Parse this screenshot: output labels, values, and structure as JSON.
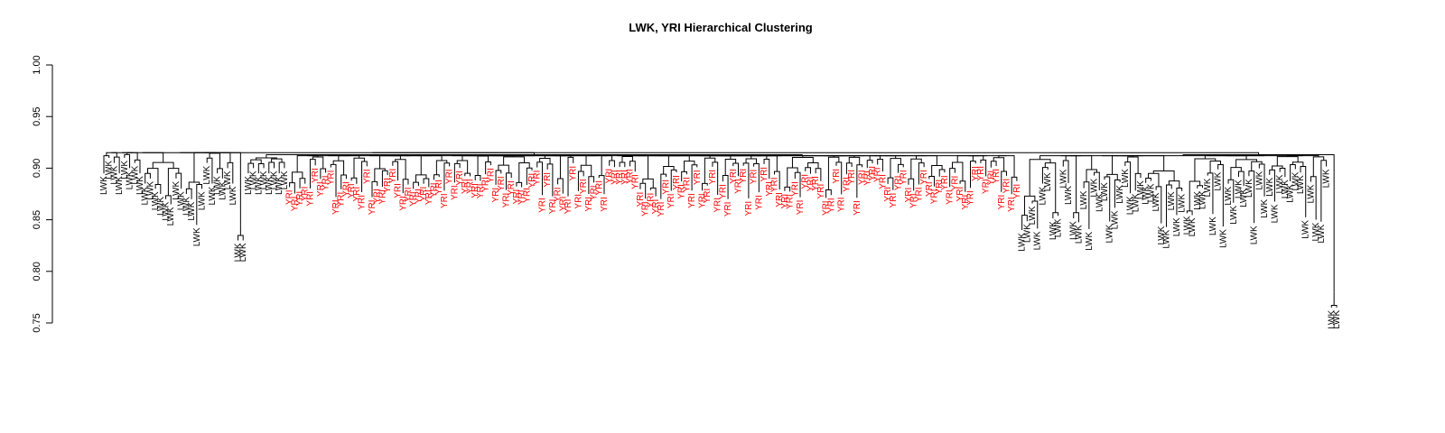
{
  "chart_data": {
    "type": "dendrogram",
    "title": "LWK, YRI Hierarchical Clustering",
    "xlabel": "",
    "ylabel": "",
    "ylim": [
      0.75,
      1.0
    ],
    "y_ticks": [
      "0.75",
      "0.80",
      "0.85",
      "0.90",
      "0.95",
      "1.00"
    ],
    "grid": false,
    "legend": "none",
    "series": [
      {
        "name": "LWK",
        "color": "#000000"
      },
      {
        "name": "YRI",
        "color": "#ff0000"
      }
    ],
    "leaf_labels": {
      "black": "LWK",
      "red": "YRI"
    },
    "root_height": 0.915,
    "groups": [
      {
        "label": "LWK",
        "color": "#000000",
        "leaves": 26,
        "merge_height": 0.915,
        "leaf_heights": [
          0.895,
          0.91,
          0.905,
          0.895,
          0.91,
          0.9,
          0.905,
          0.895,
          0.885,
          0.89,
          0.88,
          0.875,
          0.87,
          0.865,
          0.89,
          0.88,
          0.875,
          0.87,
          0.845,
          0.88,
          0.905,
          0.885,
          0.895,
          0.89,
          0.9,
          0.885
        ]
      },
      {
        "label": "LWK",
        "color": "#000000",
        "leaves": 2,
        "merge_height": 0.845,
        "leaf_heights": [
          0.83,
          0.83
        ],
        "note": "outlier pair"
      },
      {
        "label": "LWK",
        "color": "#000000",
        "leaves": 8,
        "merge_height": 0.91,
        "leaf_heights": [
          0.895,
          0.9,
          0.895,
          0.9,
          0.895,
          0.9,
          0.895,
          0.9
        ]
      },
      {
        "label": "YRI",
        "color": "#ff0000",
        "leaves": 142,
        "merge_height": 0.912,
        "leaf_heights_range": [
          0.87,
          0.905
        ]
      },
      {
        "label": "LWK",
        "color": "#000000",
        "leaves": 60,
        "merge_height": 0.912,
        "leaf_heights_range": [
          0.84,
          0.905
        ]
      },
      {
        "label": "LWK",
        "color": "#000000",
        "leaves": 2,
        "merge_height": 0.78,
        "leaf_heights": [
          0.765,
          0.765
        ],
        "note": "outlier pair"
      }
    ]
  }
}
